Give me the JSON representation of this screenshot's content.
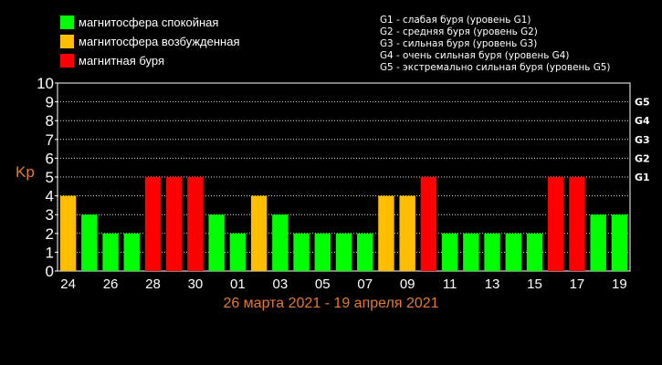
{
  "legend": [
    {
      "label": "магнитосфера спокойная",
      "color": "#00ff00"
    },
    {
      "label": "магнитосфера возбужденная",
      "color": "#ffbf00"
    },
    {
      "label": "магнитная буря",
      "color": "#ff0000"
    }
  ],
  "g_legend": [
    "G1 - слабая буря (уровень G1)",
    "G2 - средняя буря (уровень G2)",
    "G3 - сильная буря (уровень G3)",
    "G4 - очень сильная буря (уровень G4)",
    "G5 - экстремально сильная буря (уровень G5)"
  ],
  "chart_data": {
    "type": "bar",
    "ylabel": "Kp",
    "xlabel": "26 марта 2021 - 19 апреля 2021",
    "ylim": [
      0,
      10
    ],
    "yticks": [
      "0",
      "1",
      "2",
      "3",
      "4",
      "5",
      "6",
      "7",
      "8",
      "9",
      "10"
    ],
    "right_ticks": [
      {
        "label": "G1",
        "value": 5
      },
      {
        "label": "G2",
        "value": 6
      },
      {
        "label": "G3",
        "value": 7
      },
      {
        "label": "G4",
        "value": 8
      },
      {
        "label": "G5",
        "value": 9
      }
    ],
    "x_tick_labels": [
      "24",
      "26",
      "28",
      "30",
      "01",
      "03",
      "05",
      "07",
      "09",
      "11",
      "13",
      "15",
      "17",
      "19"
    ],
    "values": [
      4,
      3,
      2,
      2,
      5,
      5,
      5,
      3,
      2,
      4,
      3,
      2,
      2,
      2,
      2,
      4,
      4,
      5,
      2,
      2,
      2,
      2,
      2,
      5,
      5,
      3,
      3
    ],
    "colors": {
      "calm": "#00ff00",
      "active": "#ffbf00",
      "storm": "#ff0000"
    },
    "grid": true
  }
}
